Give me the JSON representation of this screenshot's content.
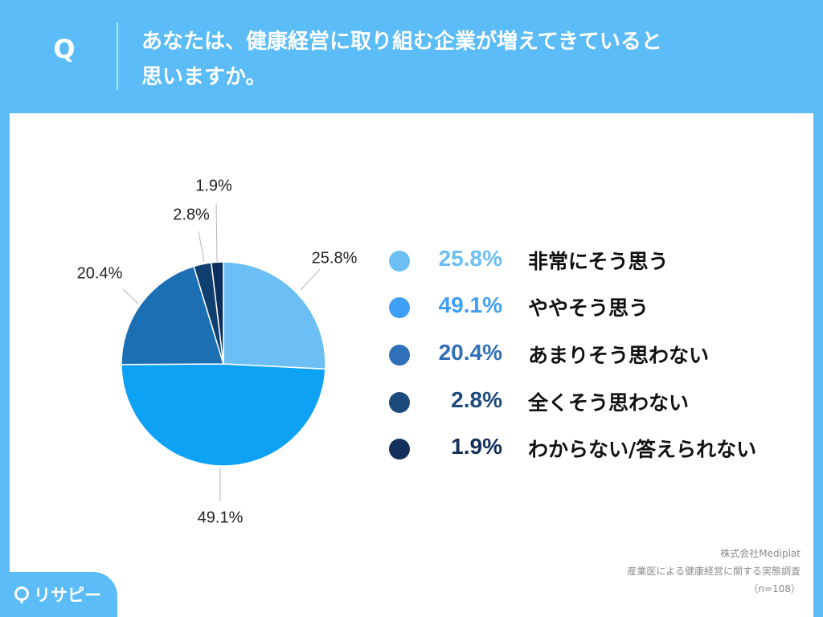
{
  "header": {
    "q_label": "Q",
    "question_line1": "あなたは、健康経営に取り組む企業が増えてきていると",
    "question_line2": "思いますか。"
  },
  "chart_data": {
    "type": "pie",
    "start": "12 o'clock, clockwise",
    "series": [
      {
        "name": "非常にそう思う",
        "value": 25.8,
        "label": "25.8%",
        "color": "#6bbff5"
      },
      {
        "name": "ややそう思う",
        "value": 49.1,
        "label": "49.1%",
        "color": "#0ea2f4"
      },
      {
        "name": "あまりそう思わない",
        "value": 20.4,
        "label": "20.4%",
        "color": "#1d6fb4"
      },
      {
        "name": "全くそう思わない",
        "value": 2.8,
        "label": "2.8%",
        "color": "#0f3f6f"
      },
      {
        "name": "わからない/答えられない",
        "value": 1.9,
        "label": "1.9%",
        "color": "#0b2e5c"
      }
    ]
  },
  "legend": {
    "items": [
      {
        "value": "25.8%",
        "label": "非常にそう思う",
        "color": "#6bbff5"
      },
      {
        "value": "49.1%",
        "label": "ややそう思う",
        "color": "#3f9ef5"
      },
      {
        "value": "20.4%",
        "label": "あまりそう思わない",
        "color": "#2f70b8"
      },
      {
        "value": "2.8%",
        "label": "全くそう思わない",
        "color": "#1d4a7c"
      },
      {
        "value": "1.9%",
        "label": "わからない/答えられない",
        "color": "#13305a"
      }
    ]
  },
  "source": {
    "line1": "株式会社Mediplat",
    "line2": "産業医による健康経営に関する実態調査",
    "line3": "（n=108）"
  },
  "logo": {
    "text": "リサピー",
    "icon": "map-pin-icon"
  }
}
